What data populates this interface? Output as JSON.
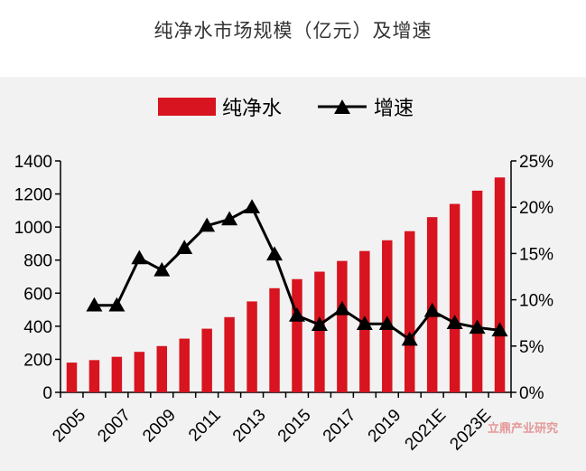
{
  "page_title": "纯净水市场规模（亿元）及增速",
  "watermark": "立鼎产业研究",
  "colors": {
    "bar": "#d7141f",
    "line": "#000000",
    "axis": "#000000",
    "panel": "#f2f2f2"
  },
  "chart_data": {
    "type": "bar",
    "title": "纯净水市场规模（亿元）及增速",
    "x": [
      "2005",
      "2006",
      "2007",
      "2008",
      "2009",
      "2010",
      "2011",
      "2012",
      "2013",
      "2014",
      "2015",
      "2016",
      "2017",
      "2018",
      "2019",
      "2020",
      "2021E",
      "2022E",
      "2023E",
      "2024E"
    ],
    "x_tick_labels": [
      "2005",
      "2007",
      "2009",
      "2011",
      "2013",
      "2015",
      "2017",
      "2019",
      "2021E",
      "2023E"
    ],
    "series": [
      {
        "name": "纯净水",
        "type": "bar",
        "axis": "left",
        "values": [
          180,
          195,
          215,
          245,
          280,
          325,
          385,
          455,
          550,
          630,
          685,
          730,
          795,
          855,
          920,
          975,
          1060,
          1140,
          1220,
          1300
        ]
      },
      {
        "name": "增速",
        "type": "line",
        "marker": "triangle",
        "axis": "right",
        "values": [
          null,
          9.4,
          9.4,
          14.5,
          13.2,
          15.6,
          18.0,
          18.7,
          20.0,
          14.9,
          8.3,
          7.3,
          9.0,
          7.4,
          7.4,
          5.7,
          8.8,
          7.5,
          7.0,
          6.7
        ]
      }
    ],
    "ylim_left": [
      0,
      1400
    ],
    "yticks_left": [
      "0",
      "200",
      "400",
      "600",
      "800",
      "1000",
      "1200",
      "1400"
    ],
    "ylim_right": [
      0,
      25
    ],
    "yticks_right": [
      "0%",
      "5%",
      "10%",
      "15%",
      "20%",
      "25%"
    ],
    "legend": {
      "position": "top",
      "entries": [
        "纯净水",
        "增速"
      ]
    },
    "grid": false
  }
}
